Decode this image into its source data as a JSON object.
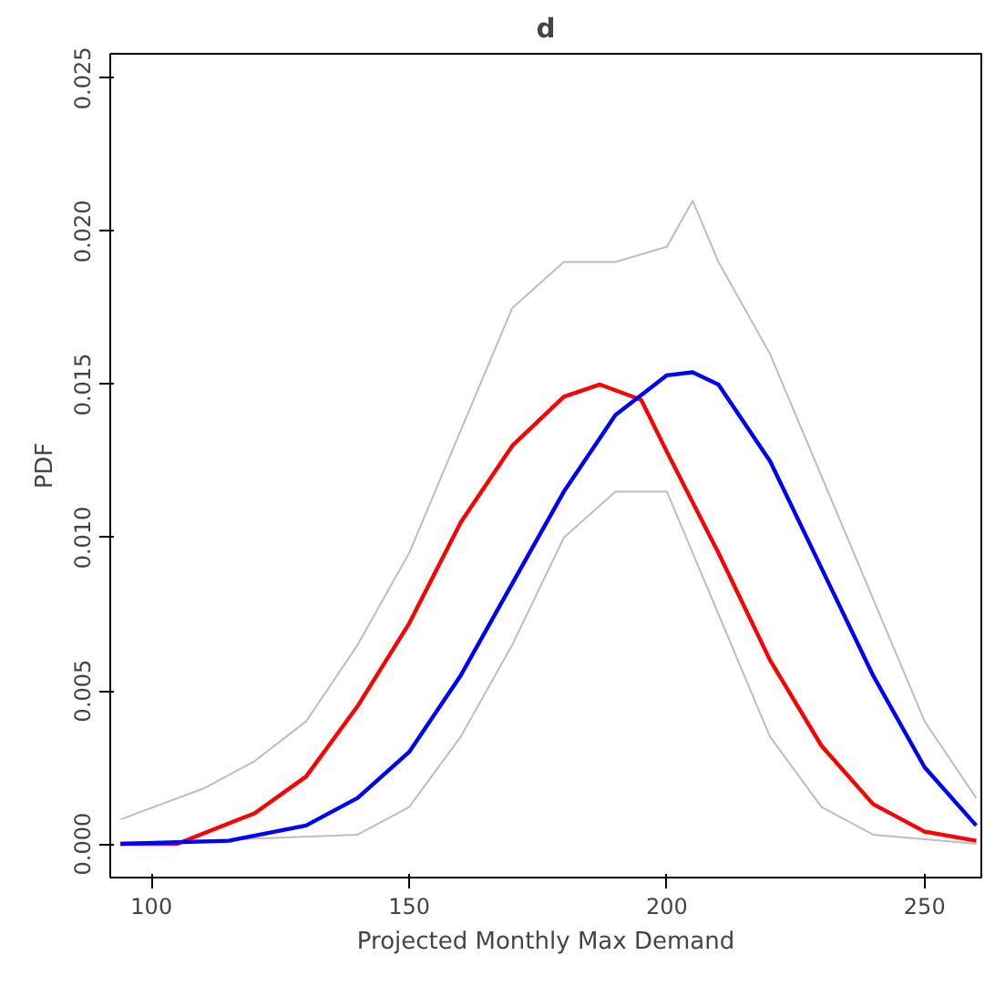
{
  "chart_data": {
    "type": "line",
    "title": "d",
    "xlabel": "Projected Monthly Max Demand",
    "ylabel": "PDF",
    "xlim": [
      92,
      261
    ],
    "ylim": [
      -0.0011,
      0.0258
    ],
    "xticks": [
      100,
      150,
      200,
      250
    ],
    "yticks": [
      {
        "value": 0,
        "label": "0.000"
      },
      {
        "value": 0.005,
        "label": "0.005"
      },
      {
        "value": 0.01,
        "label": "0.010"
      },
      {
        "value": 0.015,
        "label": "0.015"
      },
      {
        "value": 0.02,
        "label": "0.020"
      },
      {
        "value": 0.025,
        "label": "0.025"
      }
    ],
    "grid": false,
    "marker": "none",
    "line_style": "solid",
    "series": [
      {
        "color": "#bebebe",
        "x": [
          94,
          110,
          120,
          130,
          140,
          150,
          160,
          170,
          180,
          190,
          200,
          205,
          210,
          220,
          230,
          240,
          250,
          260
        ],
        "values": [
          0.0008,
          0.0018,
          0.0027,
          0.004,
          0.0065,
          0.0095,
          0.0135,
          0.0175,
          0.019,
          0.019,
          0.0195,
          0.021,
          0.019,
          0.016,
          0.012,
          0.008,
          0.004,
          0.0015
        ]
      },
      {
        "color": "#bebebe",
        "x": [
          94,
          140,
          150,
          160,
          170,
          180,
          190,
          200,
          210,
          220,
          230,
          240,
          260
        ],
        "values": [
          0,
          0.0003,
          0.0012,
          0.0035,
          0.0065,
          0.01,
          0.0115,
          0.0115,
          0.0075,
          0.0035,
          0.0012,
          0.0003,
          0
        ]
      },
      {
        "color": "#ff0000",
        "x": [
          94,
          105,
          120,
          130,
          140,
          150,
          160,
          170,
          180,
          187,
          195,
          200,
          210,
          220,
          230,
          240,
          250,
          260
        ],
        "values": [
          0,
          0,
          0.001,
          0.0022,
          0.0045,
          0.0072,
          0.0105,
          0.013,
          0.0146,
          0.015,
          0.0145,
          0.0128,
          0.0095,
          0.006,
          0.0032,
          0.0013,
          0.0004,
          0.0001
        ]
      },
      {
        "color": "#0000ff",
        "x": [
          94,
          115,
          130,
          140,
          150,
          160,
          170,
          180,
          190,
          200,
          205,
          210,
          220,
          230,
          240,
          250,
          260
        ],
        "values": [
          0,
          0.0001,
          0.0006,
          0.0015,
          0.003,
          0.0055,
          0.0085,
          0.0115,
          0.014,
          0.0153,
          0.0154,
          0.015,
          0.0125,
          0.009,
          0.0055,
          0.0025,
          0.0006
        ]
      }
    ]
  }
}
